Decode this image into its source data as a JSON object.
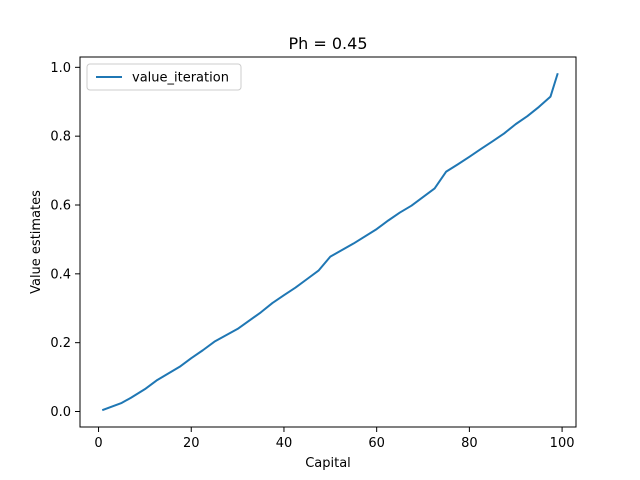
{
  "chart_data": {
    "type": "line",
    "title": "Ph = 0.45",
    "xlabel": "Capital",
    "ylabel": "Value estimates",
    "xlim": [
      -4,
      103
    ],
    "ylim": [
      -0.045,
      1.03
    ],
    "xticks": [
      0,
      20,
      40,
      60,
      80,
      100
    ],
    "xtick_labels": [
      "0",
      "20",
      "40",
      "60",
      "80",
      "100"
    ],
    "yticks": [
      0.0,
      0.2,
      0.4,
      0.6,
      0.8,
      1.0
    ],
    "ytick_labels": [
      "0.0",
      "0.2",
      "0.4",
      "0.6",
      "0.8",
      "1.0"
    ],
    "grid": false,
    "legend_position": "top-left",
    "series": [
      {
        "name": "value_iteration",
        "color": "#1f77b4",
        "x": [
          1,
          5,
          7,
          10,
          12.5,
          15,
          17.5,
          20,
          22.5,
          25,
          30,
          35,
          37.5,
          40,
          42.5,
          45,
          47.5,
          50,
          55,
          60,
          62.5,
          65,
          67.5,
          70,
          72.5,
          75,
          77.5,
          80,
          82.5,
          85,
          87.5,
          90,
          92.5,
          95,
          97.5,
          99
        ],
        "y": [
          0.005,
          0.025,
          0.04,
          0.065,
          0.09,
          0.11,
          0.13,
          0.155,
          0.178,
          0.203,
          0.24,
          0.288,
          0.315,
          0.338,
          0.36,
          0.385,
          0.41,
          0.45,
          0.488,
          0.53,
          0.555,
          0.578,
          0.598,
          0.623,
          0.648,
          0.697,
          0.718,
          0.74,
          0.763,
          0.785,
          0.808,
          0.835,
          0.858,
          0.885,
          0.915,
          0.98
        ]
      }
    ]
  }
}
